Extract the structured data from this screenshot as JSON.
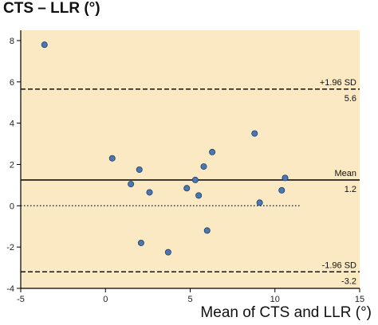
{
  "chart_data": {
    "type": "scatter",
    "ylabel": "CTS – LLR (°)",
    "xlabel": "Mean of CTS and LLR (°)",
    "xlim": [
      -5,
      15
    ],
    "ylim": [
      -4,
      8.5
    ],
    "xticks": [
      "-5",
      "0",
      "5",
      "10",
      "15"
    ],
    "yticks": [
      "-4",
      "-2",
      "0",
      "2",
      "4",
      "6",
      "8"
    ],
    "points": [
      {
        "x": -3.6,
        "y": 7.8
      },
      {
        "x": 0.4,
        "y": 2.3
      },
      {
        "x": 1.5,
        "y": 1.05
      },
      {
        "x": 2.0,
        "y": 1.75
      },
      {
        "x": 2.6,
        "y": 0.65
      },
      {
        "x": 2.1,
        "y": -1.8
      },
      {
        "x": 3.7,
        "y": -2.25
      },
      {
        "x": 4.8,
        "y": 0.85
      },
      {
        "x": 5.3,
        "y": 1.25
      },
      {
        "x": 5.5,
        "y": 0.5
      },
      {
        "x": 5.8,
        "y": 1.9
      },
      {
        "x": 6.3,
        "y": 2.6
      },
      {
        "x": 6.0,
        "y": -1.2
      },
      {
        "x": 8.8,
        "y": 3.5
      },
      {
        "x": 9.1,
        "y": 0.15
      },
      {
        "x": 10.4,
        "y": 0.75
      },
      {
        "x": 10.6,
        "y": 1.35
      }
    ],
    "reference_lines": [
      {
        "name": "+1.96 SD",
        "value_label": "5.6",
        "y": 5.65,
        "style": "dashed"
      },
      {
        "name": "Mean",
        "value_label": "1.2",
        "y": 1.25,
        "style": "solid"
      },
      {
        "name": "-1.96 SD",
        "value_label": "-3.2",
        "y": -3.2,
        "style": "dashed"
      }
    ],
    "zero_line": {
      "y": 0,
      "x_end": 11.5,
      "style": "dotted"
    },
    "colors": {
      "background": "#fbe9c4",
      "point": "#4a78b0",
      "point_edge": "#1f3a66"
    }
  }
}
